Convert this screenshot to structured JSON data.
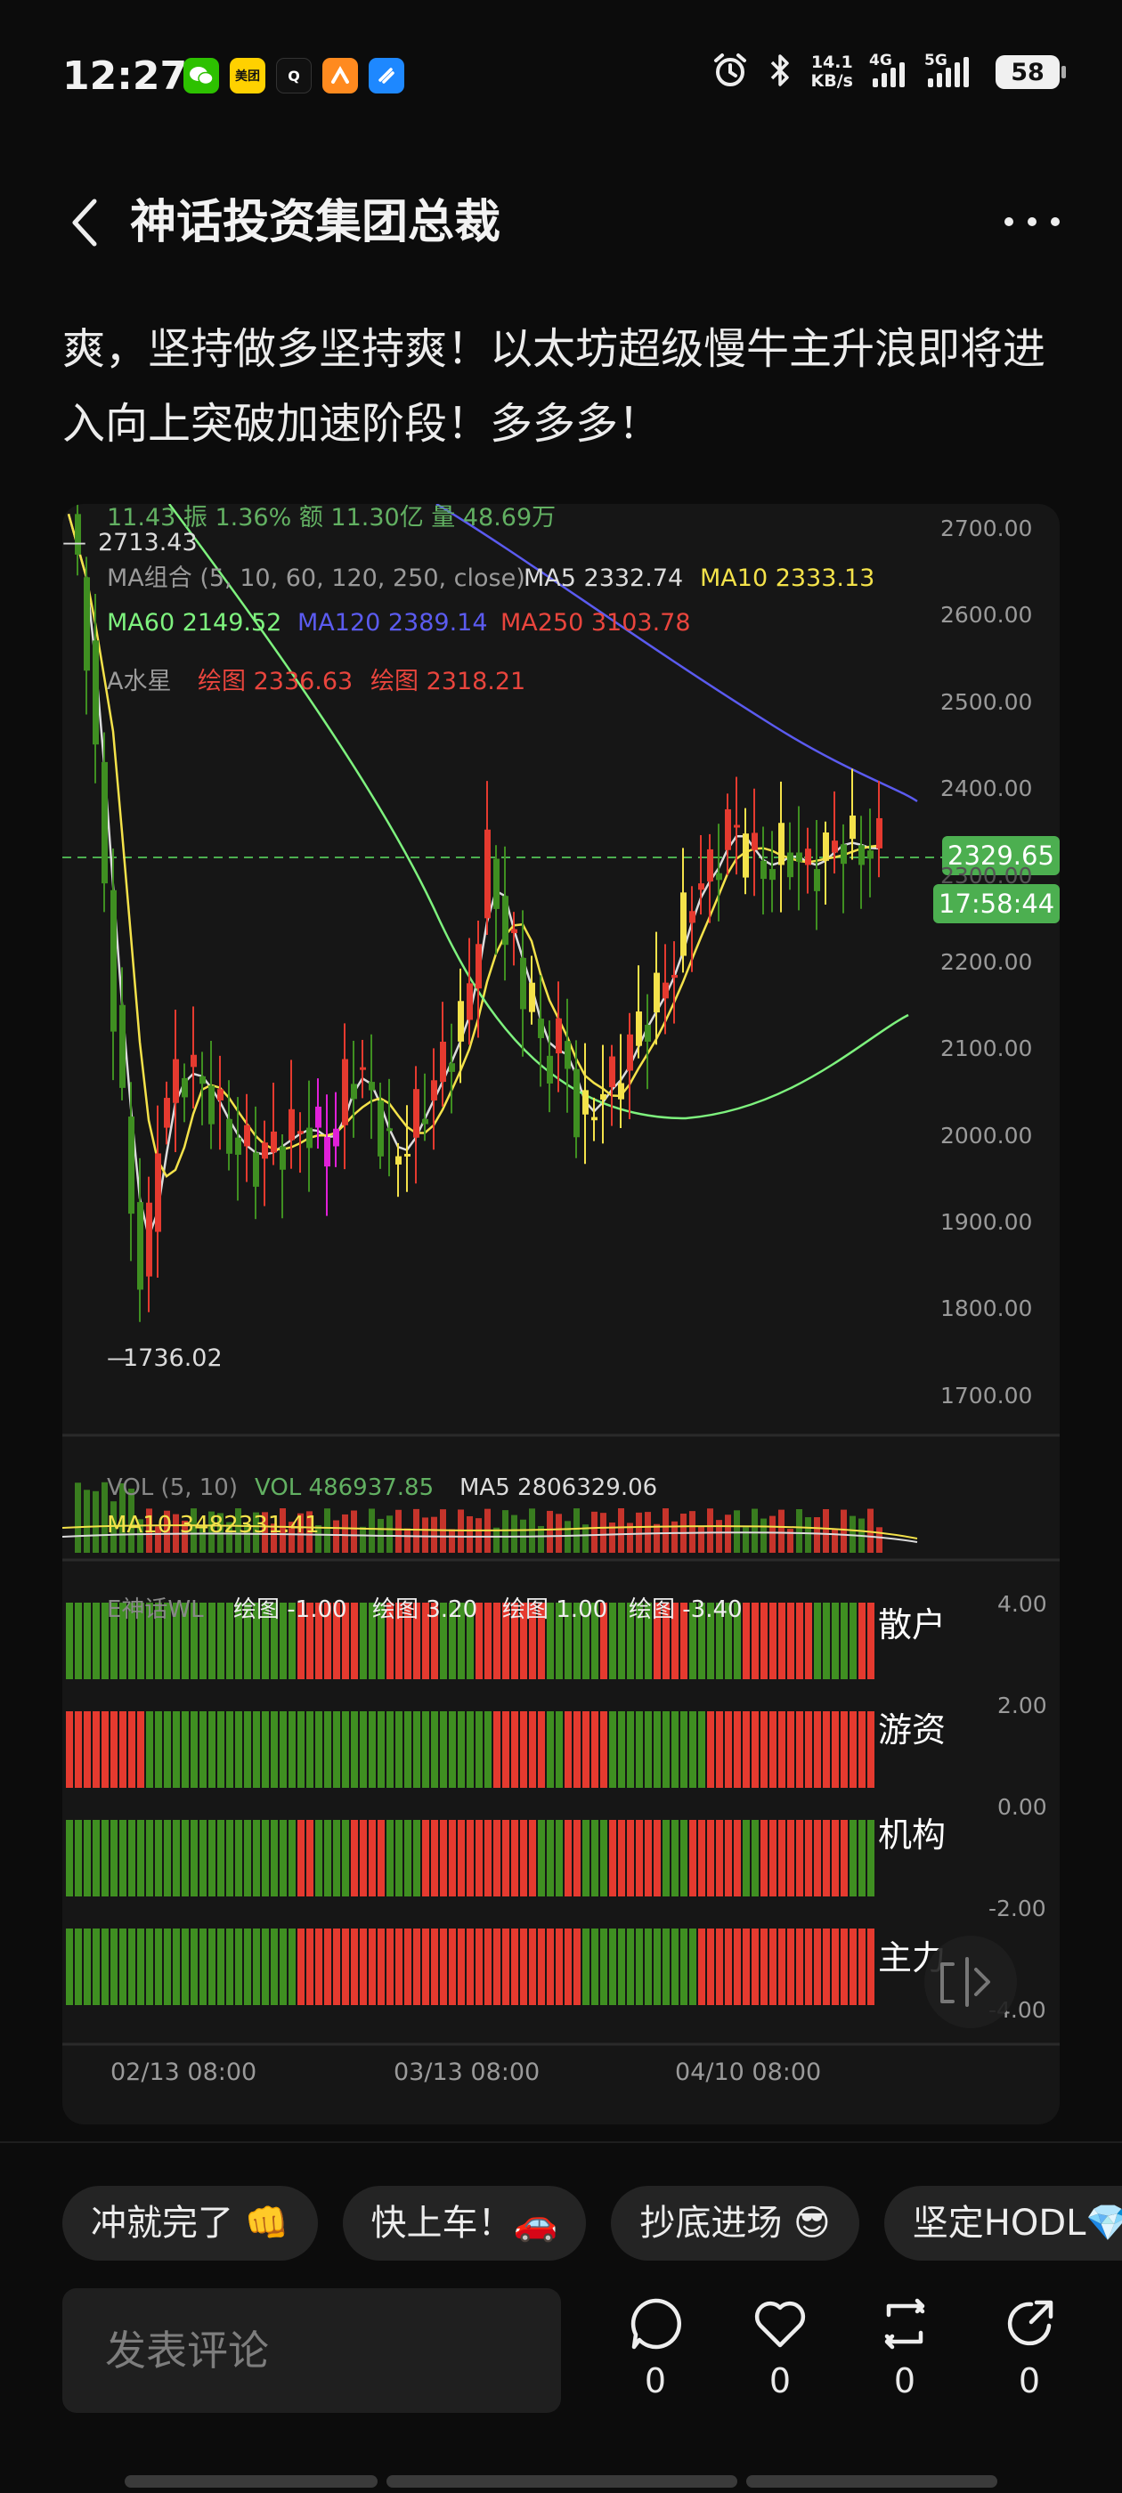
{
  "status_bar": {
    "time": "12:27",
    "net_speed_value": "14.1",
    "net_speed_unit": "KB/s",
    "network_4g": "4G",
    "network_5g": "5G",
    "battery": "58",
    "app_icons": [
      {
        "name": "wechat-icon",
        "color": "#2dc100"
      },
      {
        "name": "meituan-icon",
        "color": "#ffd100",
        "text": "美团"
      },
      {
        "name": "qq-icon",
        "color": "#111111",
        "text": "Q"
      },
      {
        "name": "app-orange-icon",
        "color": "#ff8a1f"
      },
      {
        "name": "app-blue-icon",
        "color": "#1e88ff"
      }
    ]
  },
  "header": {
    "title": "神话投资集团总裁"
  },
  "post": {
    "text": "爽，坚持做多坚持爽！以太坊超级慢牛主升浪即将进入向上突破加速阶段！多多多！"
  },
  "chart": {
    "top_info": "11.43  振 1.36%  额 11.30亿  量 48.69万",
    "high_label": "2713.43",
    "low_label": "1736.02",
    "ma_group": "MA组合 (5, 10, 60, 120, 250, close)",
    "ma5": "MA5 2332.74",
    "ma10": "MA10 2333.13",
    "ma60": "MA60 2149.52",
    "ma120": "MA120 2389.14",
    "ma250": "MA250 3103.78",
    "indicator_name": "A水星",
    "indicator_plot1": "绘图 2336.63",
    "indicator_plot2": "绘图 2318.21",
    "price_ticks": [
      "2700.00",
      "2600.00",
      "2500.00",
      "2400.00",
      "2300.00",
      "2200.00",
      "2100.00",
      "2000.00",
      "1900.00",
      "1800.00",
      "1700.00"
    ],
    "current_price": "2329.65",
    "countdown": "17:58:44",
    "vol_label": "VOL (5, 10)",
    "vol_value": "VOL 486937.85",
    "vol_ma5": "MA5 2806329.06",
    "vol_ma10": "MA10 3482331.41",
    "wl_name": "E神话WL",
    "wl_plot1": "绘图 -1.00",
    "wl_plot2": "绘图 3.20",
    "wl_plot3": "绘图 1.00",
    "wl_plot4": "绘图 -3.40",
    "wl_ticks": [
      "4.00",
      "2.00",
      "0.00",
      "-2.00",
      "-4.00"
    ],
    "wl_rows": [
      "散户",
      "游资",
      "机构",
      "主力"
    ],
    "x_labels": [
      "02/13 08:00",
      "03/13 08:00",
      "04/10 08:00"
    ],
    "colors": {
      "up": "#e53a2f",
      "down": "#3f8f21",
      "ma5": "#dcdcdc",
      "ma10": "#f4e24a",
      "ma60": "#7ef27e",
      "ma120": "#5b5bf0",
      "ma250": "#e9453d",
      "magenta": "#e020d8",
      "price_badge": "#4caf50"
    }
  },
  "chips": [
    "冲就完了 👊",
    "快上车！🚗",
    "抄底进场 😎",
    "坚定HODL💎"
  ],
  "comment": {
    "placeholder": "发表评论"
  },
  "actions": [
    {
      "name": "comment-icon",
      "count": "0"
    },
    {
      "name": "like-icon",
      "count": "0"
    },
    {
      "name": "repost-icon",
      "count": "0"
    },
    {
      "name": "share-icon",
      "count": "0"
    }
  ]
}
